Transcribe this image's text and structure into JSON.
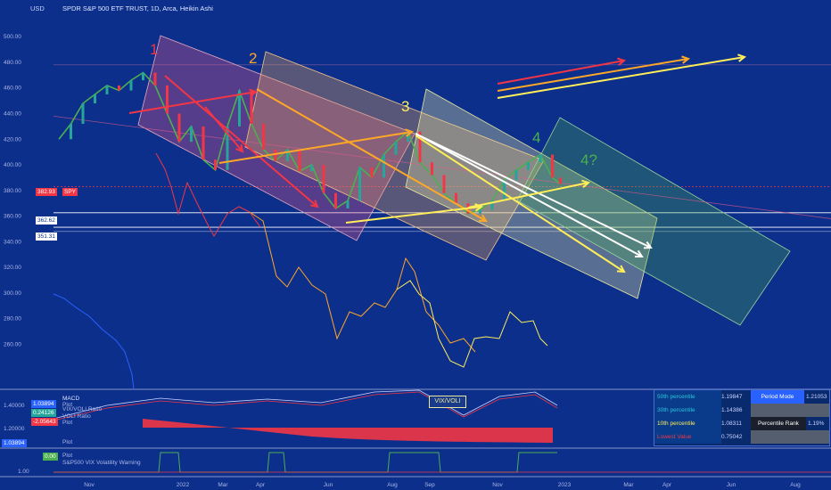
{
  "header": {
    "currency": "USD",
    "title": "SPDR S&P 500 ETF TRUST, 1D, Arca, Heikin Ashi"
  },
  "chart_data": {
    "type": "line",
    "title": "SPDR S&P 500 ETF TRUST, 1D, Arca, Heikin Ashi",
    "ylabel": "USD",
    "ylim": [
      245,
      505
    ],
    "y_ticks": [
      "500.00",
      "480.00",
      "460.00",
      "440.00",
      "420.00",
      "400.00",
      "380.00",
      "360.00",
      "340.00",
      "320.00",
      "300.00",
      "280.00",
      "260.00"
    ],
    "y_tick_values": [
      500,
      480,
      460,
      440,
      420,
      400,
      380,
      360,
      340,
      320,
      300,
      280,
      260
    ],
    "x_ticks": [
      "Nov",
      "2022",
      "Mar",
      "Apr",
      "Jun",
      "Aug",
      "Sep",
      "Nov",
      "2023",
      "Mar",
      "Apr",
      "Jun",
      "Aug"
    ],
    "series": [
      {
        "name": "SPY",
        "x": [
          0,
          15,
          30,
          45,
          60,
          75,
          90,
          105,
          120,
          135,
          150,
          165,
          180,
          195,
          210,
          225,
          240,
          255,
          270,
          285,
          300,
          315,
          330,
          345,
          360,
          375,
          390,
          405,
          420,
          435,
          450,
          465,
          480,
          495,
          510,
          525,
          540,
          555,
          570,
          585,
          600,
          615,
          625
        ],
        "values": [
          420,
          432,
          448,
          455,
          462,
          458,
          466,
          472,
          462,
          440,
          418,
          430,
          404,
          396,
          430,
          458,
          432,
          412,
          403,
          412,
          395,
          400,
          378,
          366,
          372,
          398,
          390,
          408,
          418,
          426,
          402,
          392,
          378,
          370,
          362,
          365,
          372,
          388,
          396,
          402,
          408,
          390,
          385
        ]
      }
    ],
    "price_labels": [
      {
        "label": "SPY",
        "value": "382.93",
        "color": "#f23645"
      },
      {
        "value": "362.62",
        "color": "#ffffff"
      },
      {
        "value": "351.31",
        "color": "#ffffff"
      }
    ],
    "wave_labels": [
      "1",
      "2",
      "3",
      "4",
      "4?"
    ],
    "indicators": {
      "macd_panel": {
        "label": "MACD",
        "y_ticks": [
          "1.40000",
          "1.20000"
        ],
        "values": [
          {
            "value": "1.03894",
            "name": "Plot"
          },
          {
            "value": "0.24126",
            "name": "VIX/VOLI Ratio"
          },
          {
            "value": "-2.05643",
            "name": "Plot"
          }
        ],
        "extra_label": "VOLI Ratio",
        "annotation": "VIX/VOLI"
      },
      "warning_panel": {
        "label": "S&P500 VIX Volatility Warning",
        "values": [
          {
            "value": "1.03894",
            "name": "Plot"
          },
          {
            "value": "0.00",
            "name": "Plot"
          }
        ],
        "y_ticks": [
          "1.00"
        ]
      }
    }
  },
  "percentile_table": {
    "rows": [
      {
        "label": "50th percentile",
        "value": "1.19847",
        "side_label": "Period Mode",
        "side_value": "1.21053"
      },
      {
        "label": "30th percentile",
        "value": "1.14386",
        "side_label": "",
        "side_value": ""
      },
      {
        "label": "10th percentile",
        "value": "1.08311",
        "side_label": "Percentile Rank",
        "side_value": "1.19%"
      },
      {
        "label": "Lowest Value",
        "value": "0.75042",
        "side_label": "",
        "side_value": ""
      }
    ]
  },
  "colors": {
    "background": "#0c2f8c",
    "wave1": "#f23645",
    "wave2": "#ffa726",
    "wave3": "#ffee58",
    "wave4": "#4caf50",
    "channel_fill": "#4caf50"
  }
}
